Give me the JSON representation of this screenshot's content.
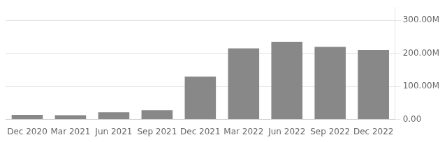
{
  "chart_data": {
    "type": "bar",
    "categories": [
      "Dec 2020",
      "Mar 2021",
      "Jun 2021",
      "Sep 2021",
      "Dec 2021",
      "Mar 2022",
      "Jun 2022",
      "Sep 2022",
      "Dec 2022"
    ],
    "values": [
      14,
      13,
      22,
      28,
      130,
      215,
      235,
      220,
      210
    ],
    "color": "#888888",
    "ylim": [
      0,
      340
    ],
    "yticks": [
      {
        "value": 0,
        "label": "0.00"
      },
      {
        "value": 100,
        "label": "100.00M"
      },
      {
        "value": 200,
        "label": "200.00M"
      },
      {
        "value": 300,
        "label": "300.00M"
      }
    ],
    "grid": "y"
  }
}
